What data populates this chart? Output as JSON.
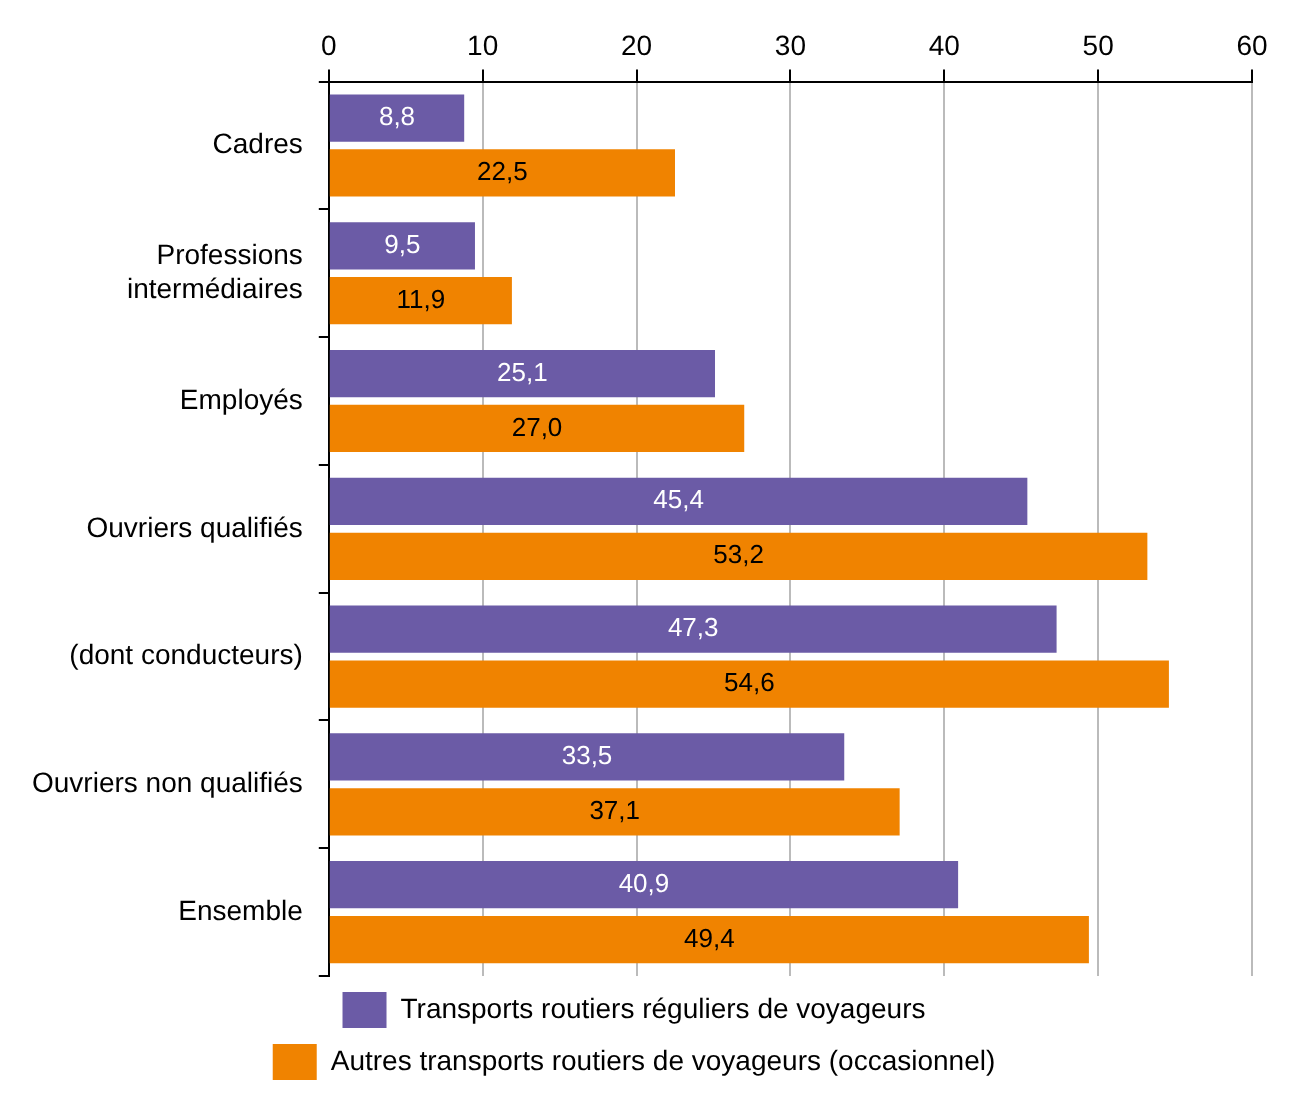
{
  "chart_data": {
    "type": "bar",
    "orientation": "horizontal",
    "categories": [
      "Cadres",
      "Professions\nintermédiaires",
      "Employés",
      "Ouvriers qualifiés",
      "(dont conducteurs)",
      "Ouvriers non qualifiés",
      "Ensemble"
    ],
    "series": [
      {
        "name": "Transports routiers réguliers de voyageurs",
        "color": "#6b5ba6",
        "values": [
          8.8,
          9.5,
          25.1,
          45.4,
          47.3,
          33.5,
          40.9
        ],
        "value_labels": [
          "8,8",
          "9,5",
          "25,1",
          "45,4",
          "47,3",
          "33,5",
          "40,9"
        ]
      },
      {
        "name": "Autres transports routiers de voyageurs (occasionnel)",
        "color": "#f08300",
        "values": [
          22.5,
          11.9,
          27.0,
          53.2,
          54.6,
          37.1,
          49.4
        ],
        "value_labels": [
          "22,5",
          "11,9",
          "27,0",
          "53,2",
          "54,6",
          "37,1",
          "49,4"
        ]
      }
    ],
    "xlim": [
      0,
      60
    ],
    "xticks": [
      0,
      10,
      20,
      30,
      40,
      50,
      60
    ],
    "grid": "x",
    "legend": "bottom"
  }
}
